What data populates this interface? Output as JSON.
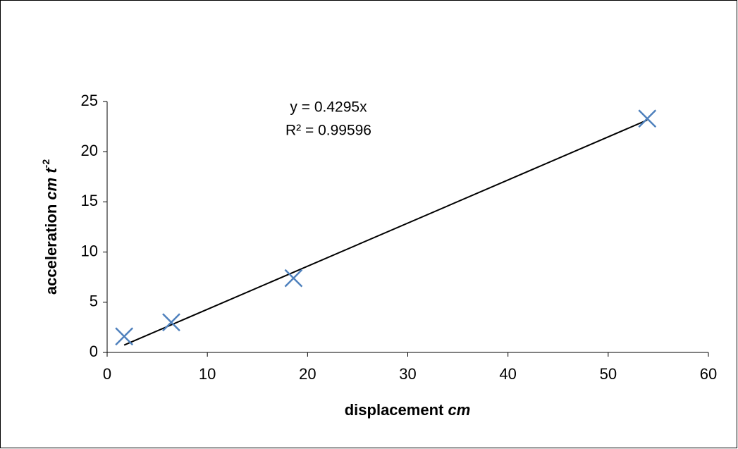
{
  "chart_data": {
    "type": "scatter",
    "x_label": [
      "displacement",
      "cm"
    ],
    "y_label": [
      "acceleration",
      "cm",
      "t",
      "-2"
    ],
    "series": [
      {
        "color": "#4f81bd",
        "x": [
          1.7,
          6.4,
          18.6,
          53.9
        ],
        "values": [
          1.6,
          3.0,
          7.4,
          23.3
        ]
      }
    ],
    "trendline": {
      "label": "y = 0.4295x",
      "r2_label": "R² = 0.99596",
      "slope": 0.4295,
      "x": [
        1.7,
        53.9
      ],
      "color": "#000000"
    },
    "xlim": [
      0,
      60
    ],
    "xticks": [
      0,
      10,
      20,
      30,
      40,
      50,
      60
    ],
    "ylim": [
      0,
      25
    ],
    "yticks": [
      0,
      5,
      10,
      15,
      20,
      25
    ],
    "grid": false
  }
}
